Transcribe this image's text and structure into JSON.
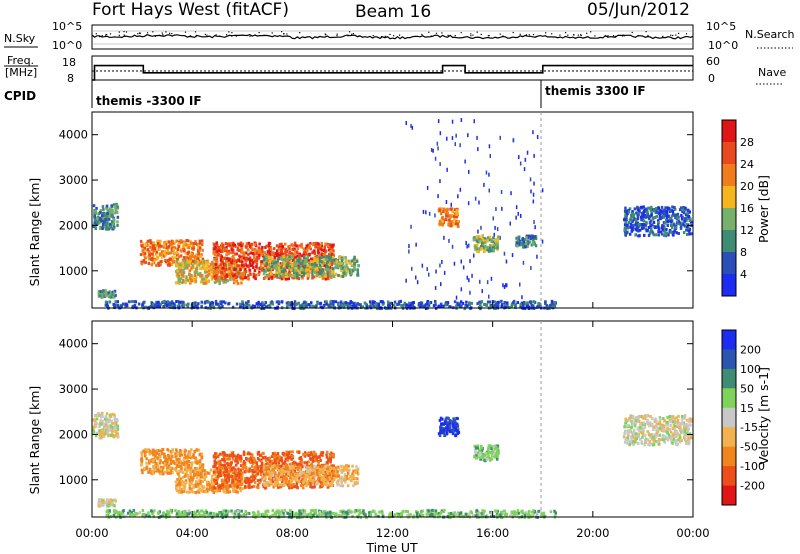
{
  "header": {
    "site": "Fort Hays West (fitACF)",
    "beam": "Beam 16",
    "date": "05/Jun/2012"
  },
  "noise_panel": {
    "left_label": "N.Sky",
    "right_label": "N.Search",
    "tick_top": "10^5",
    "tick_bottom": "10^0"
  },
  "freq_panel": {
    "left_label_1": "Freq.",
    "left_label_2": "[MHz]",
    "right_label": "Nave",
    "left_ticks": [
      "18",
      "8"
    ],
    "right_ticks": [
      "60",
      "0"
    ],
    "freq_steps": [
      {
        "t0": 0.0,
        "t1": 0.1,
        "mhz": 8
      },
      {
        "t0": 0.1,
        "t1": 2.05,
        "mhz": 16
      },
      {
        "t0": 2.05,
        "t1": 14.0,
        "mhz": 12
      },
      {
        "t0": 14.0,
        "t1": 14.9,
        "mhz": 16
      },
      {
        "t0": 14.9,
        "t1": 18.0,
        "mhz": 12
      },
      {
        "t0": 18.0,
        "t1": 24.0,
        "mhz": 16
      }
    ]
  },
  "cpid": {
    "label": "CPID",
    "modes": [
      {
        "name": "themis -3300 IF",
        "start": 0.0
      },
      {
        "name": "themis 3300 IF",
        "start": 18.0
      }
    ]
  },
  "colors": {
    "power_scale": [
      "#1c2cf0",
      "#2a4fb8",
      "#3f8c75",
      "#76b06a",
      "#f5b51e",
      "#f07c1e",
      "#e8491e",
      "#e01515"
    ],
    "velocity_scale": [
      "#e01515",
      "#ee4f1a",
      "#f0851e",
      "#f2b24f",
      "#c8c8c8",
      "#7ed45a",
      "#3f8c75",
      "#2a55b0",
      "#1c2cf0"
    ],
    "ground_scatter": "#c8c8c8"
  },
  "chart_data": [
    {
      "type": "heatmap",
      "name": "power",
      "ylabel": "Slant Range [km]",
      "colorbar_label": "Power [dB]",
      "colorbar_ticks": [
        "28",
        "24",
        "20",
        "16",
        "12",
        "8",
        "4"
      ],
      "x_range_hours": [
        0,
        24
      ],
      "ylim": [
        180,
        4500
      ],
      "yticks": [
        "4000",
        "3000",
        "2000",
        "1000"
      ],
      "regions": [
        {
          "t0": 0.0,
          "t1": 1.0,
          "r0": 1950,
          "r1": 2500,
          "level": 2
        },
        {
          "t0": 0.2,
          "t1": 0.9,
          "r0": 450,
          "r1": 600,
          "level": 2
        },
        {
          "t0": 1.9,
          "t1": 4.4,
          "r0": 1150,
          "r1": 1700,
          "level": 5
        },
        {
          "t0": 3.3,
          "t1": 6.0,
          "r0": 750,
          "r1": 1250,
          "level": 4
        },
        {
          "t0": 4.8,
          "t1": 9.6,
          "r0": 850,
          "r1": 1650,
          "level": 6
        },
        {
          "t0": 6.8,
          "t1": 10.6,
          "r0": 900,
          "r1": 1350,
          "level": 3
        },
        {
          "t0": 0.5,
          "t1": 18.5,
          "r0": 200,
          "r1": 360,
          "level": 1
        },
        {
          "t0": 12.5,
          "t1": 18.0,
          "r0": 400,
          "r1": 4400,
          "level": 0,
          "sparse": true
        },
        {
          "t0": 13.8,
          "t1": 14.6,
          "r0": 2000,
          "r1": 2400,
          "level": 5
        },
        {
          "t0": 15.2,
          "t1": 16.2,
          "r0": 1450,
          "r1": 1800,
          "level": 3
        },
        {
          "t0": 16.9,
          "t1": 17.7,
          "r0": 1550,
          "r1": 1800,
          "level": 2
        },
        {
          "t0": 21.2,
          "t1": 23.9,
          "r0": 1800,
          "r1": 2450,
          "level": 1
        }
      ]
    },
    {
      "type": "heatmap",
      "name": "velocity",
      "ylabel": "Slant Range [km]",
      "xlabel": "Time UT",
      "colorbar_label": "Velocity [m s-1]",
      "colorbar_ticks": [
        "200",
        "100",
        "50",
        "15",
        "-15",
        "-50",
        "-100",
        "-200"
      ],
      "x_range_hours": [
        0,
        24
      ],
      "xticks": [
        "00:00",
        "04:00",
        "08:00",
        "12:00",
        "16:00",
        "20:00",
        "00:00"
      ],
      "ylim": [
        180,
        4500
      ],
      "yticks": [
        "4000",
        "3000",
        "2000",
        "1000"
      ],
      "regions": [
        {
          "t0": 0.0,
          "t1": 1.0,
          "r0": 1950,
          "r1": 2500,
          "v": 0
        },
        {
          "t0": 0.2,
          "t1": 0.9,
          "r0": 450,
          "r1": 600,
          "v": 0
        },
        {
          "t0": 1.9,
          "t1": 4.4,
          "r0": 1150,
          "r1": 1700,
          "v": -60
        },
        {
          "t0": 3.3,
          "t1": 6.0,
          "r0": 750,
          "r1": 1250,
          "v": -50
        },
        {
          "t0": 4.8,
          "t1": 9.6,
          "r0": 850,
          "r1": 1650,
          "v": -110
        },
        {
          "t0": 6.8,
          "t1": 10.6,
          "r0": 900,
          "r1": 1350,
          "v": -40
        },
        {
          "t0": 0.5,
          "t1": 18.5,
          "r0": 200,
          "r1": 360,
          "v": 40
        },
        {
          "t0": 13.8,
          "t1": 14.6,
          "r0": 2000,
          "r1": 2400,
          "v": 200
        },
        {
          "t0": 15.2,
          "t1": 16.2,
          "r0": 1450,
          "r1": 1800,
          "v": 30
        },
        {
          "t0": 21.2,
          "t1": 23.9,
          "r0": 1800,
          "r1": 2450,
          "v": 0
        }
      ]
    }
  ]
}
